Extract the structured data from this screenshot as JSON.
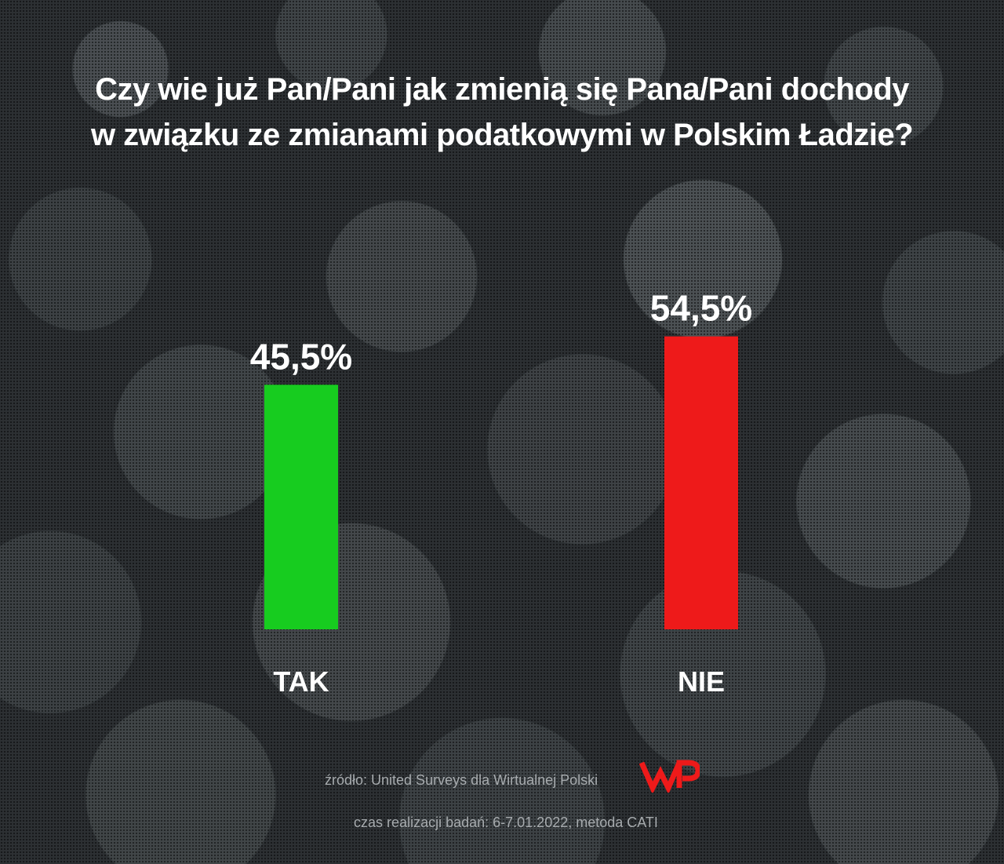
{
  "title_lines": [
    "Czy wie już Pan/Pani jak zmienią się Pana/Pani dochody",
    "w związku ze zmianami podatkowymi w Polskim Ładzie?"
  ],
  "chart_data": {
    "type": "bar",
    "title": "Czy wie już Pan/Pani jak zmienią się Pana/Pani dochody w związku ze zmianami podatkowymi w Polskim Ładzie?",
    "categories": [
      "TAK",
      "NIE"
    ],
    "values": [
      45.5,
      54.5
    ],
    "value_labels": [
      "45,5%",
      "54,5%"
    ],
    "colors": [
      "#17cc1f",
      "#ee1a1a"
    ],
    "ylim": [
      0,
      100
    ],
    "xlabel": "",
    "ylabel": "",
    "grid": false
  },
  "footer": {
    "source": "źródło: United Surveys dla Wirtualnej Polski",
    "meta": "czas realizacji badań: 6-7.01.2022, metoda CATI",
    "logo_text": "WP",
    "logo_color": "#ee1a1a"
  }
}
